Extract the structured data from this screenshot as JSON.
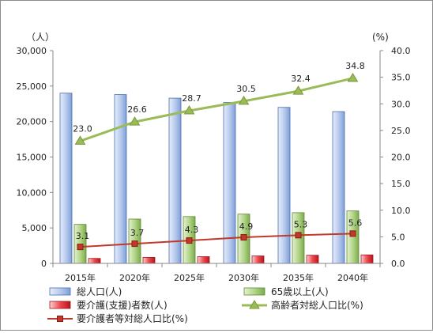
{
  "chart_data": {
    "type": "bar",
    "categories": [
      "2015年",
      "2020年",
      "2025年",
      "2030年",
      "2035年",
      "2040年"
    ],
    "y_left": {
      "unit": "（人）",
      "range": [
        0,
        30000
      ],
      "ticks": [
        "0",
        "5,000",
        "10,000",
        "15,000",
        "20,000",
        "25,000",
        "30,000"
      ]
    },
    "y_right": {
      "unit": "(%)",
      "range": [
        0,
        40
      ],
      "ticks": [
        "0.0",
        "5.0",
        "10.0",
        "15.0",
        "20.0",
        "25.0",
        "30.0",
        "35.0",
        "40.0"
      ]
    },
    "grid": false,
    "legend_position": "bottom",
    "bar_series": [
      {
        "name": "総人口(人)",
        "axis": "left",
        "color": "#8ea9db",
        "values": [
          24000,
          23800,
          23300,
          22700,
          22000,
          21400
        ]
      },
      {
        "name": "65歳以上(人)",
        "axis": "left",
        "color": "#9bc46a",
        "values": [
          5500,
          6250,
          6600,
          6950,
          7150,
          7400
        ]
      },
      {
        "name": "要介護(支援)者数(人)",
        "axis": "left",
        "color": "#e0303a",
        "values": [
          700,
          850,
          950,
          1050,
          1150,
          1200
        ]
      }
    ],
    "line_series": [
      {
        "name": "高齢者対総人口比(%)",
        "axis": "right",
        "color": "#9bbb59",
        "marker": "triangle",
        "values": [
          23.0,
          26.6,
          28.7,
          30.5,
          32.4,
          34.8
        ],
        "labels": [
          "23.0",
          "26.6",
          "28.7",
          "30.5",
          "32.4",
          "34.8"
        ]
      },
      {
        "name": "要介護者等対総人口比(%)",
        "axis": "right",
        "color": "#c0392b",
        "marker": "square",
        "values": [
          3.1,
          3.7,
          4.3,
          4.9,
          5.3,
          5.6
        ],
        "labels": [
          "3.1",
          "3.7",
          "4.3",
          "4.9",
          "5.3",
          "5.6"
        ]
      }
    ]
  }
}
